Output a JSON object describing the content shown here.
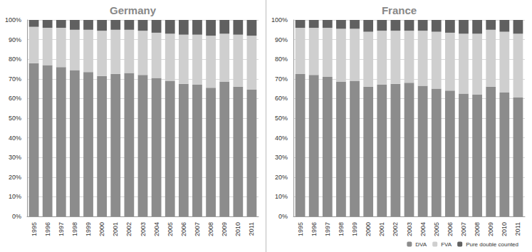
{
  "chart_data": [
    {
      "type": "bar",
      "title": "Germany",
      "stacked": true,
      "grid": true,
      "categories": [
        "1995",
        "1996",
        "1997",
        "1998",
        "1999",
        "2000",
        "2001",
        "2002",
        "2003",
        "2004",
        "2005",
        "2006",
        "2007",
        "2008",
        "2009",
        "2010",
        "2011"
      ],
      "ylim": [
        0,
        100
      ],
      "yticks": [
        {
          "value": 0,
          "label": "0%"
        },
        {
          "value": 10,
          "label": "10%"
        },
        {
          "value": 20,
          "label": "20%"
        },
        {
          "value": 30,
          "label": "30%"
        },
        {
          "value": 40,
          "label": "40%"
        },
        {
          "value": 50,
          "label": "50%"
        },
        {
          "value": 60,
          "label": "60%"
        },
        {
          "value": 70,
          "label": "70%"
        },
        {
          "value": 80,
          "label": "80%"
        },
        {
          "value": 90,
          "label": "90%"
        },
        {
          "value": 100,
          "label": "100%"
        }
      ],
      "series": [
        {
          "name": "DVA",
          "color": "#8c8c8c",
          "values": [
            78,
            77,
            76,
            74.5,
            73.5,
            71.5,
            72.5,
            73,
            72,
            70.5,
            69,
            67.5,
            67,
            65.5,
            68.5,
            66,
            64.5
          ]
        },
        {
          "name": "FVA",
          "color": "#cfcfcf",
          "values": [
            18.5,
            19,
            20,
            20.5,
            21.5,
            23,
            22.5,
            22,
            22.5,
            23,
            24,
            25,
            25.5,
            26.5,
            24.5,
            26.5,
            27.5
          ]
        },
        {
          "name": "Pure double counted",
          "color": "#606060",
          "values": [
            3.5,
            4,
            4,
            5,
            5,
            5.5,
            5,
            5,
            5.5,
            6.5,
            7,
            7.5,
            7.5,
            8,
            7,
            7.5,
            8
          ]
        }
      ]
    },
    {
      "type": "bar",
      "title": "France",
      "stacked": true,
      "grid": true,
      "legend": "bottom",
      "categories": [
        "1995",
        "1996",
        "1997",
        "1998",
        "1999",
        "2000",
        "2001",
        "2002",
        "2003",
        "2004",
        "2005",
        "2006",
        "2007",
        "2008",
        "2009",
        "2010",
        "2011"
      ],
      "ylim": [
        0,
        100
      ],
      "yticks": [
        {
          "value": 0,
          "label": "0%"
        },
        {
          "value": 10,
          "label": "10%"
        },
        {
          "value": 20,
          "label": "20%"
        },
        {
          "value": 30,
          "label": "30%"
        },
        {
          "value": 40,
          "label": "40%"
        },
        {
          "value": 50,
          "label": "50%"
        },
        {
          "value": 60,
          "label": "60%"
        },
        {
          "value": 70,
          "label": "70%"
        },
        {
          "value": 80,
          "label": "80%"
        },
        {
          "value": 90,
          "label": "90%"
        },
        {
          "value": 100,
          "label": "100%"
        }
      ],
      "series": [
        {
          "name": "DVA",
          "color": "#8c8c8c",
          "values": [
            72.5,
            72,
            71,
            68.5,
            69,
            66,
            67,
            67.5,
            68,
            66.5,
            65,
            64,
            62.5,
            62,
            66,
            63,
            60.5
          ]
        },
        {
          "name": "FVA",
          "color": "#cfcfcf",
          "values": [
            23.5,
            24,
            25,
            27,
            26.5,
            28,
            27.5,
            27,
            26.5,
            28,
            29,
            29.5,
            30.5,
            31,
            29,
            31,
            32.5
          ]
        },
        {
          "name": "Pure double counted",
          "color": "#606060",
          "values": [
            4,
            4,
            4,
            4.5,
            4.5,
            6,
            5.5,
            5.5,
            5.5,
            5.5,
            6,
            6.5,
            7,
            7,
            5,
            6,
            7
          ]
        }
      ]
    }
  ]
}
